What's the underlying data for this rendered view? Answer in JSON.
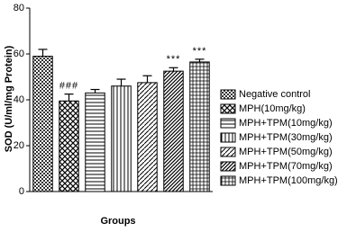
{
  "chart_data": {
    "type": "bar",
    "y_label": "SOD (U/ml/mg Protein)",
    "x_label": "Groups",
    "categories": [
      "Negative control",
      "MPH(10mg/kg)",
      "MPH+TPM(10mg/kg)",
      "MPH+TPM(30mg/kg)",
      "MPH+TPM(50mg/kg)",
      "MPH+TPM(70mg/kg)",
      "MPH+TPM(100mg/kg)"
    ],
    "values": [
      59,
      39.5,
      43,
      46,
      47.5,
      52.5,
      56.5
    ],
    "errors": [
      3,
      3,
      1.5,
      3,
      3,
      1.5,
      1.2
    ],
    "annotations": [
      null,
      "###",
      null,
      null,
      null,
      "***",
      "***"
    ],
    "ylim": [
      0,
      80
    ],
    "yticks": [
      0,
      20,
      40,
      60,
      80
    ],
    "legend": "right"
  }
}
